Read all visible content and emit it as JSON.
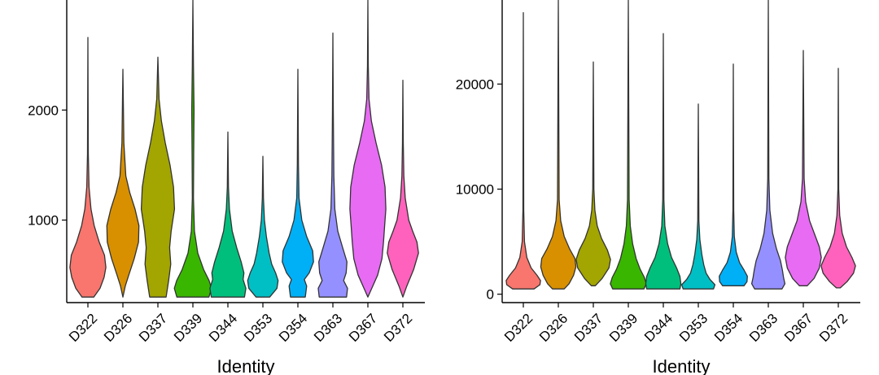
{
  "chart_data": [
    {
      "type": "violin",
      "xlabel": "Identity",
      "ylabel": "",
      "ylim": [
        250,
        3000
      ],
      "yticks": [
        1000,
        2000
      ],
      "y_tick_labels": [
        "1000",
        "2000"
      ],
      "categories": [
        "D322",
        "D326",
        "D337",
        "D339",
        "D344",
        "D353",
        "D354",
        "D363",
        "D367",
        "D372"
      ],
      "colors": [
        "#F8766D",
        "#D89000",
        "#A3A500",
        "#39B600",
        "#00BF7D",
        "#00BFC4",
        "#00B0F6",
        "#9590FF",
        "#E76BF3",
        "#FF62BC"
      ],
      "violins": [
        {
          "min": 300,
          "max": 2660,
          "profile": [
            [
              300,
              0.3
            ],
            [
              380,
              0.62
            ],
            [
              480,
              0.83
            ],
            [
              570,
              0.92
            ],
            [
              680,
              0.85
            ],
            [
              800,
              0.58
            ],
            [
              950,
              0.32
            ],
            [
              1100,
              0.16
            ],
            [
              1300,
              0.06
            ],
            [
              1600,
              0.02
            ],
            [
              2660,
              0
            ]
          ]
        },
        {
          "min": 300,
          "max": 2370,
          "profile": [
            [
              300,
              0
            ],
            [
              400,
              0.12
            ],
            [
              500,
              0.3
            ],
            [
              650,
              0.58
            ],
            [
              800,
              0.8
            ],
            [
              950,
              0.82
            ],
            [
              1100,
              0.62
            ],
            [
              1250,
              0.35
            ],
            [
              1400,
              0.15
            ],
            [
              1700,
              0.05
            ],
            [
              2370,
              0
            ]
          ]
        },
        {
          "min": 300,
          "max": 2480,
          "profile": [
            [
              300,
              0.42
            ],
            [
              450,
              0.55
            ],
            [
              600,
              0.66
            ],
            [
              750,
              0.6
            ],
            [
              900,
              0.68
            ],
            [
              1100,
              0.85
            ],
            [
              1300,
              0.8
            ],
            [
              1500,
              0.62
            ],
            [
              1700,
              0.38
            ],
            [
              1900,
              0.18
            ],
            [
              2100,
              0.06
            ],
            [
              2480,
              0
            ]
          ]
        },
        {
          "min": 300,
          "max": 3000,
          "profile": [
            [
              300,
              0.82
            ],
            [
              380,
              0.95
            ],
            [
              450,
              0.83
            ],
            [
              550,
              0.55
            ],
            [
              700,
              0.25
            ],
            [
              900,
              0.08
            ],
            [
              1200,
              0.03
            ],
            [
              1600,
              0.04
            ],
            [
              2000,
              0.06
            ],
            [
              2400,
              0.03
            ],
            [
              3000,
              0
            ]
          ]
        },
        {
          "min": 300,
          "max": 1800,
          "profile": [
            [
              300,
              0.85
            ],
            [
              380,
              0.92
            ],
            [
              460,
              0.78
            ],
            [
              520,
              0.82
            ],
            [
              620,
              0.68
            ],
            [
              750,
              0.45
            ],
            [
              900,
              0.22
            ],
            [
              1100,
              0.08
            ],
            [
              1300,
              0.03
            ],
            [
              1800,
              0
            ]
          ]
        },
        {
          "min": 300,
          "max": 1580,
          "profile": [
            [
              300,
              0.35
            ],
            [
              380,
              0.72
            ],
            [
              450,
              0.78
            ],
            [
              520,
              0.65
            ],
            [
              600,
              0.45
            ],
            [
              700,
              0.32
            ],
            [
              850,
              0.18
            ],
            [
              1000,
              0.08
            ],
            [
              1200,
              0.03
            ],
            [
              1580,
              0
            ]
          ]
        },
        {
          "min": 300,
          "max": 2370,
          "profile": [
            [
              300,
              0.38
            ],
            [
              400,
              0.45
            ],
            [
              460,
              0.33
            ],
            [
              520,
              0.58
            ],
            [
              620,
              0.8
            ],
            [
              720,
              0.76
            ],
            [
              850,
              0.45
            ],
            [
              1000,
              0.2
            ],
            [
              1200,
              0.06
            ],
            [
              1500,
              0.03
            ],
            [
              2370,
              0
            ]
          ]
        },
        {
          "min": 300,
          "max": 2700,
          "profile": [
            [
              300,
              0.7
            ],
            [
              380,
              0.75
            ],
            [
              450,
              0.55
            ],
            [
              520,
              0.68
            ],
            [
              620,
              0.72
            ],
            [
              750,
              0.5
            ],
            [
              900,
              0.25
            ],
            [
              1100,
              0.1
            ],
            [
              1400,
              0.05
            ],
            [
              2000,
              0.02
            ],
            [
              2700,
              0
            ]
          ]
        },
        {
          "min": 300,
          "max": 3000,
          "profile": [
            [
              300,
              0
            ],
            [
              380,
              0.2
            ],
            [
              500,
              0.5
            ],
            [
              650,
              0.72
            ],
            [
              800,
              0.8
            ],
            [
              950,
              0.86
            ],
            [
              1100,
              0.92
            ],
            [
              1300,
              0.88
            ],
            [
              1500,
              0.7
            ],
            [
              1700,
              0.42
            ],
            [
              1900,
              0.18
            ],
            [
              2100,
              0.06
            ],
            [
              2400,
              0.02
            ],
            [
              3000,
              0
            ]
          ]
        },
        {
          "min": 300,
          "max": 2270,
          "profile": [
            [
              300,
              0
            ],
            [
              400,
              0.2
            ],
            [
              550,
              0.55
            ],
            [
              700,
              0.8
            ],
            [
              800,
              0.72
            ],
            [
              900,
              0.5
            ],
            [
              1000,
              0.3
            ],
            [
              1200,
              0.12
            ],
            [
              1400,
              0.05
            ],
            [
              1700,
              0.02
            ],
            [
              2270,
              0
            ]
          ]
        }
      ]
    },
    {
      "type": "violin",
      "xlabel": "Identity",
      "ylabel": "",
      "ylim": [
        -800,
        28000
      ],
      "yticks": [
        0,
        10000,
        20000
      ],
      "y_tick_labels": [
        "0",
        "10000",
        "20000"
      ],
      "categories": [
        "D322",
        "D326",
        "D337",
        "D339",
        "D344",
        "D353",
        "D354",
        "D363",
        "D367",
        "D372"
      ],
      "colors": [
        "#F8766D",
        "#D89000",
        "#A3A500",
        "#39B600",
        "#00BF7D",
        "#00BFC4",
        "#00B0F6",
        "#9590FF",
        "#E76BF3",
        "#FF62BC"
      ],
      "violins": [
        {
          "min": 500,
          "max": 26800,
          "profile": [
            [
              500,
              0.55
            ],
            [
              900,
              0.85
            ],
            [
              1300,
              0.88
            ],
            [
              1800,
              0.7
            ],
            [
              2500,
              0.4
            ],
            [
              3500,
              0.18
            ],
            [
              5000,
              0.06
            ],
            [
              8000,
              0.02
            ],
            [
              26800,
              0
            ]
          ]
        },
        {
          "min": 500,
          "max": 28000,
          "profile": [
            [
              500,
              0.3
            ],
            [
              1000,
              0.55
            ],
            [
              1800,
              0.78
            ],
            [
              2600,
              0.9
            ],
            [
              3400,
              0.85
            ],
            [
              4300,
              0.58
            ],
            [
              5500,
              0.3
            ],
            [
              7000,
              0.12
            ],
            [
              9000,
              0.04
            ],
            [
              28000,
              0
            ]
          ]
        },
        {
          "min": 800,
          "max": 22100,
          "profile": [
            [
              800,
              0.1
            ],
            [
              1500,
              0.45
            ],
            [
              2500,
              0.8
            ],
            [
              3300,
              0.88
            ],
            [
              4200,
              0.72
            ],
            [
              5300,
              0.42
            ],
            [
              6500,
              0.2
            ],
            [
              8000,
              0.08
            ],
            [
              10000,
              0.03
            ],
            [
              22100,
              0
            ]
          ]
        },
        {
          "min": 500,
          "max": 28000,
          "profile": [
            [
              500,
              0.8
            ],
            [
              1000,
              0.92
            ],
            [
              1600,
              0.82
            ],
            [
              2400,
              0.6
            ],
            [
              3400,
              0.4
            ],
            [
              4800,
              0.22
            ],
            [
              6500,
              0.1
            ],
            [
              9000,
              0.04
            ],
            [
              28000,
              0
            ]
          ]
        },
        {
          "min": 500,
          "max": 24800,
          "profile": [
            [
              500,
              0.85
            ],
            [
              1000,
              0.9
            ],
            [
              1700,
              0.85
            ],
            [
              2500,
              0.68
            ],
            [
              3500,
              0.42
            ],
            [
              4800,
              0.22
            ],
            [
              6500,
              0.08
            ],
            [
              9000,
              0.03
            ],
            [
              24800,
              0
            ]
          ]
        },
        {
          "min": 500,
          "max": 18100,
          "profile": [
            [
              500,
              0.78
            ],
            [
              900,
              0.85
            ],
            [
              1400,
              0.6
            ],
            [
              2000,
              0.4
            ],
            [
              2800,
              0.28
            ],
            [
              3800,
              0.18
            ],
            [
              5200,
              0.08
            ],
            [
              7000,
              0.03
            ],
            [
              18100,
              0
            ]
          ]
        },
        {
          "min": 800,
          "max": 21900,
          "profile": [
            [
              800,
              0.55
            ],
            [
              1200,
              0.7
            ],
            [
              1700,
              0.72
            ],
            [
              2300,
              0.55
            ],
            [
              3000,
              0.32
            ],
            [
              4000,
              0.15
            ],
            [
              5500,
              0.05
            ],
            [
              8000,
              0.02
            ],
            [
              21900,
              0
            ]
          ]
        },
        {
          "min": 500,
          "max": 28000,
          "profile": [
            [
              500,
              0.7
            ],
            [
              1000,
              0.85
            ],
            [
              1600,
              0.78
            ],
            [
              2300,
              0.72
            ],
            [
              3200,
              0.62
            ],
            [
              4300,
              0.42
            ],
            [
              5800,
              0.22
            ],
            [
              8000,
              0.08
            ],
            [
              11000,
              0.03
            ],
            [
              28000,
              0
            ]
          ]
        },
        {
          "min": 800,
          "max": 23200,
          "profile": [
            [
              800,
              0.2
            ],
            [
              1500,
              0.55
            ],
            [
              2500,
              0.82
            ],
            [
              3500,
              0.92
            ],
            [
              4500,
              0.82
            ],
            [
              5700,
              0.58
            ],
            [
              7000,
              0.32
            ],
            [
              8800,
              0.12
            ],
            [
              11000,
              0.04
            ],
            [
              23200,
              0
            ]
          ]
        },
        {
          "min": 600,
          "max": 21500,
          "profile": [
            [
              600,
              0.1
            ],
            [
              1200,
              0.45
            ],
            [
              2000,
              0.78
            ],
            [
              2700,
              0.88
            ],
            [
              3500,
              0.7
            ],
            [
              4500,
              0.42
            ],
            [
              5800,
              0.2
            ],
            [
              7500,
              0.07
            ],
            [
              10000,
              0.02
            ],
            [
              21500,
              0
            ]
          ]
        }
      ]
    }
  ]
}
